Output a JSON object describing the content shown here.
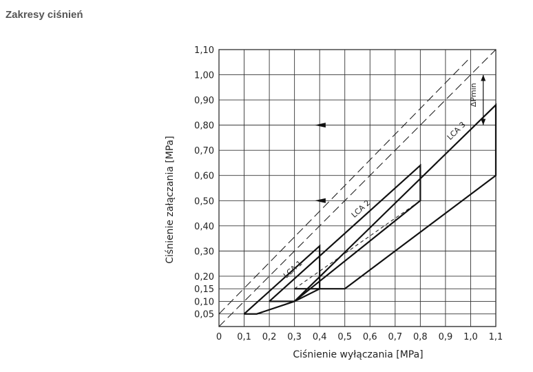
{
  "page": {
    "section_title": "Zakresy ciśnień"
  },
  "chart_data": {
    "type": "line",
    "title": "",
    "xlabel": "Ciśnienie wyłączania [MPa]",
    "ylabel": "Ciśnienie załączania [MPa]",
    "xlim": [
      0,
      1.1
    ],
    "ylim": [
      0,
      1.1
    ],
    "grid": true,
    "x_ticks": [
      0,
      0.1,
      0.2,
      0.3,
      0.4,
      0.5,
      0.6,
      0.7,
      0.8,
      0.9,
      1.0,
      1.1
    ],
    "x_tick_labels": [
      "0",
      "0,1",
      "0,2",
      "0,3",
      "0,4",
      "0,5",
      "0,6",
      "0,7",
      "0,8",
      "0,9",
      "1,0",
      "1,1"
    ],
    "y_ticks": [
      0.05,
      0.1,
      0.15,
      0.2,
      0.3,
      0.4,
      0.5,
      0.6,
      0.7,
      0.8,
      0.9,
      1.0,
      1.1
    ],
    "y_tick_labels": [
      "0,05",
      "0,10",
      "0,15",
      "0,20",
      "0,30",
      "0,40",
      "0,50",
      "0,60",
      "0,70",
      "0,80",
      "0,90",
      "1,00",
      "1,10"
    ],
    "reference_lines": [
      {
        "style": "dashed-long",
        "points": [
          [
            0.0,
            0.0
          ],
          [
            1.1,
            1.1
          ]
        ]
      },
      {
        "style": "dashed-long",
        "points": [
          [
            0.0,
            0.05
          ],
          [
            1.0,
            1.07
          ]
        ]
      },
      {
        "style": "dashed-short",
        "points": [
          [
            0.3,
            0.15
          ],
          [
            0.8,
            0.5
          ]
        ]
      }
    ],
    "series": [
      {
        "name": "LCA 1",
        "label": "LCA 1",
        "label_at": [
          0.3,
          0.22
        ],
        "points": [
          [
            0.1,
            0.05
          ],
          [
            0.4,
            0.32
          ],
          [
            0.4,
            0.15
          ],
          [
            0.3,
            0.1
          ],
          [
            0.15,
            0.05
          ],
          [
            0.1,
            0.05
          ]
        ]
      },
      {
        "name": "LCA 2",
        "label": "LCA 2",
        "label_at": [
          0.57,
          0.46
        ],
        "points": [
          [
            0.2,
            0.1
          ],
          [
            0.8,
            0.64
          ],
          [
            0.8,
            0.5
          ],
          [
            0.3,
            0.1
          ],
          [
            0.2,
            0.1
          ]
        ]
      },
      {
        "name": "LCA 3",
        "label": "LCA 3",
        "label_at": [
          0.95,
          0.77
        ],
        "points": [
          [
            0.3,
            0.1
          ],
          [
            1.1,
            0.88
          ],
          [
            1.1,
            0.6
          ],
          [
            0.5,
            0.15
          ],
          [
            0.3,
            0.15
          ]
        ]
      }
    ],
    "annotations": [
      {
        "text": "ΔPmin",
        "x": 1.02,
        "y": 0.92
      },
      {
        "type": "arrow-left",
        "x": 0.38,
        "y": 0.8
      },
      {
        "type": "arrow-left",
        "x": 0.38,
        "y": 0.5
      },
      {
        "type": "dimension",
        "x": 1.05,
        "y_from": 1.0,
        "y_to": 0.8
      }
    ]
  }
}
